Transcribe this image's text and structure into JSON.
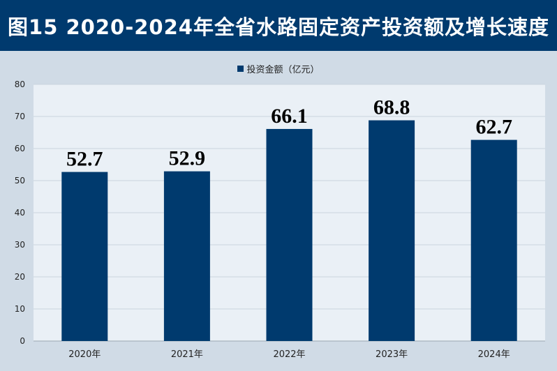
{
  "title": "图15  2020-2024年全省水路固定资产投资额及增长速度",
  "chart_data": {
    "type": "bar",
    "categories": [
      "2020年",
      "2021年",
      "2022年",
      "2023年",
      "2024年"
    ],
    "series": [
      {
        "name": "投资金额（亿元）",
        "values": [
          52.7,
          52.9,
          66.1,
          68.8,
          62.7
        ]
      }
    ],
    "data_labels": [
      "52.7",
      "52.9",
      "66.1",
      "68.8",
      "62.7"
    ],
    "yticks": [
      "0",
      "10",
      "20",
      "30",
      "40",
      "50",
      "60",
      "70",
      "80"
    ],
    "ylim": [
      0,
      80
    ],
    "grid": true,
    "legend_position": "top-center",
    "colors": {
      "bar": "#003a6e",
      "title_background": "#003a6e",
      "page_background": "#d0dbe6",
      "plot_background": "#eaf0f6",
      "gridline": "#c9d3dd"
    }
  }
}
